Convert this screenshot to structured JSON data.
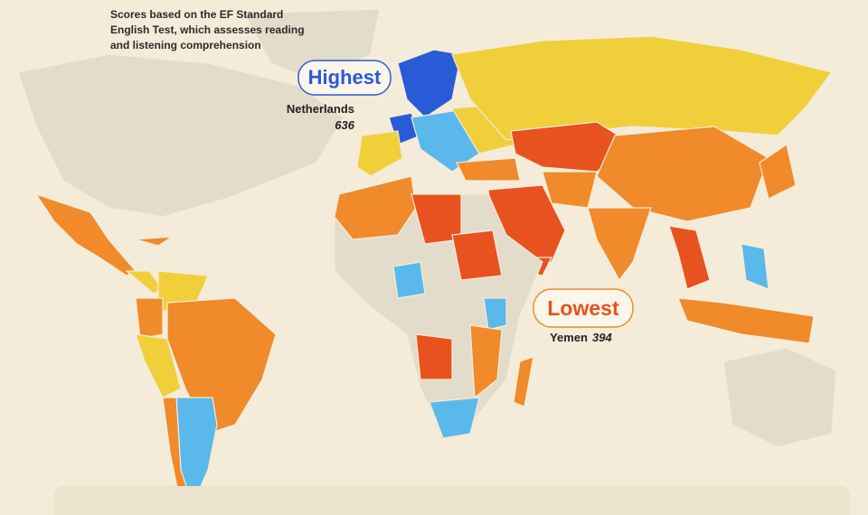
{
  "subtitle_lines": [
    "Scores based on the EF Standard",
    "English Test, which assesses reading",
    "and listening comprehension"
  ],
  "highest": {
    "label": "Highest",
    "country": "Netherlands",
    "score": 636
  },
  "lowest": {
    "label": "Lowest",
    "country": "Yemen",
    "score": 394
  }
}
